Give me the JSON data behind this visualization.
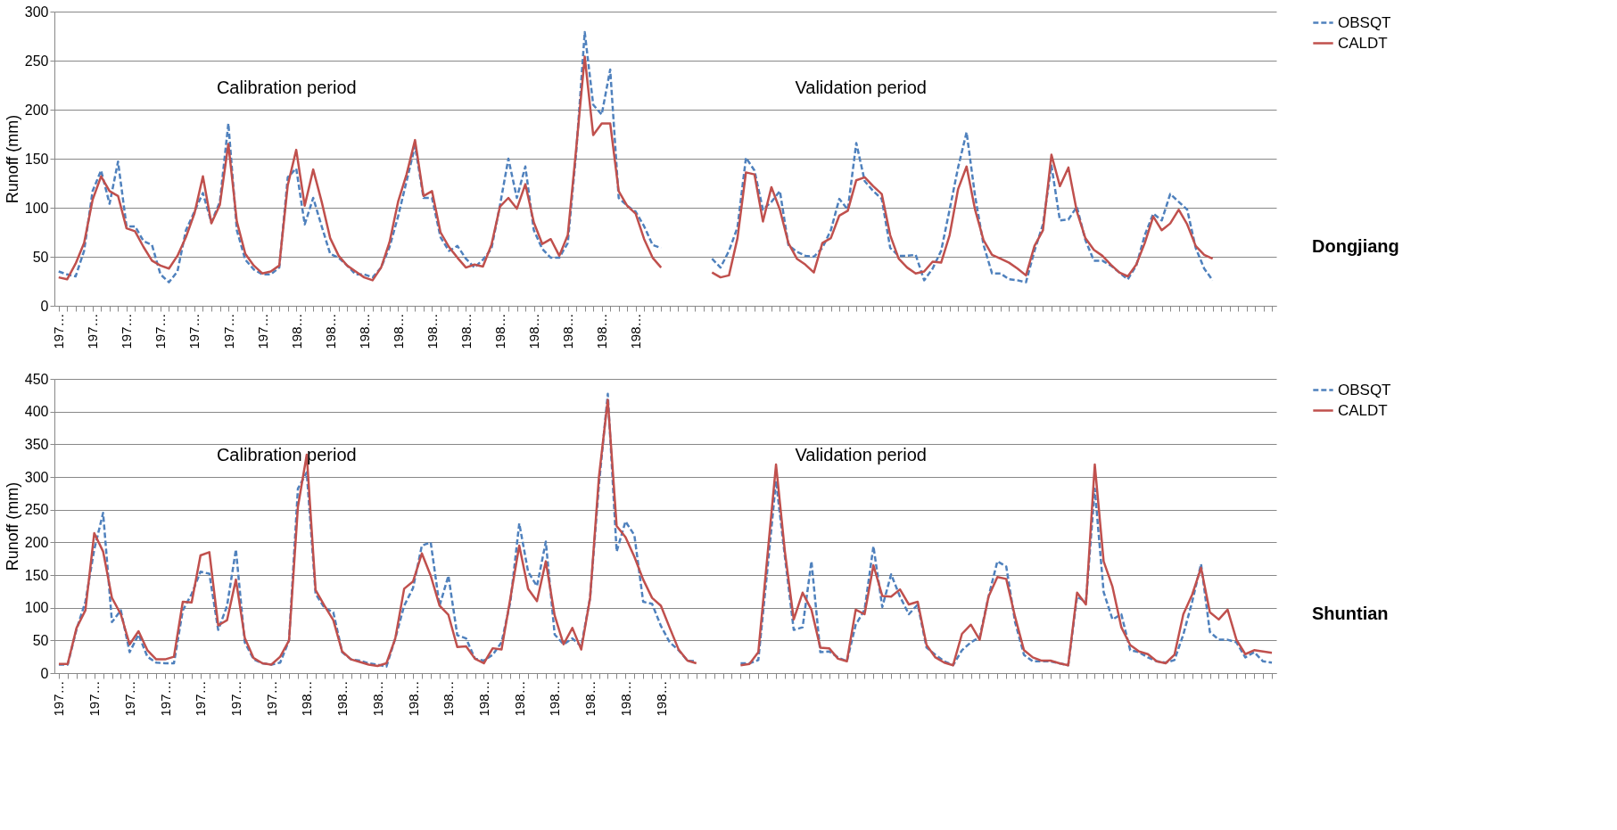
{
  "chart_data": [
    {
      "type": "line",
      "ylabel": "Runoff (mm)",
      "ylim": [
        0,
        300
      ],
      "yticks": [
        0,
        50,
        100,
        150,
        200,
        250,
        300
      ],
      "grid": "y",
      "legend": "right",
      "marker": "none",
      "annotations": [
        "Calibration period",
        "Validation period",
        "Dongjiang"
      ],
      "categories": [
        "197…",
        null,
        null,
        null,
        "197…",
        null,
        null,
        null,
        "197…",
        null,
        null,
        null,
        "197…",
        null,
        null,
        null,
        "197…",
        null,
        null,
        null,
        "197…",
        null,
        null,
        null,
        "197…",
        null,
        null,
        null,
        "198…",
        null,
        null,
        null,
        "198…",
        null,
        null,
        null,
        "198…",
        null,
        null,
        null,
        "198…",
        null,
        null,
        null,
        "198…",
        null,
        null,
        null,
        "198…",
        null,
        null,
        null,
        "198…",
        null,
        null,
        null,
        "198…",
        null,
        null,
        null,
        "198…",
        null,
        null,
        null,
        "198…",
        null,
        null,
        null,
        "198…",
        null,
        null,
        null,
        null,
        null,
        null,
        null,
        null,
        null,
        null,
        null,
        null,
        null,
        null,
        null,
        null,
        null,
        null,
        null,
        null,
        null,
        null,
        null,
        null,
        null,
        null,
        null,
        null,
        null,
        null,
        null,
        null,
        null,
        null,
        null,
        null,
        null,
        null,
        null,
        null,
        null,
        null,
        null,
        null,
        null,
        null,
        null,
        null,
        null,
        null,
        null,
        null,
        null,
        null,
        null,
        null,
        null,
        null,
        null,
        null,
        null,
        null,
        null,
        null,
        null,
        null,
        null,
        null,
        null,
        null,
        null,
        null,
        null,
        null,
        null
      ],
      "series": [
        {
          "name": "OBSQT",
          "color": "#4f81bd",
          "line_style": "dashed",
          "values": [
            35,
            32,
            30,
            56,
            117,
            138,
            104,
            147,
            81,
            81,
            66,
            62,
            32,
            24,
            35,
            77,
            96,
            115,
            85,
            106,
            186,
            77,
            47,
            37,
            32,
            32,
            39,
            131,
            140,
            83,
            110,
            81,
            53,
            49,
            41,
            32,
            32,
            29,
            39,
            60,
            91,
            127,
            163,
            110,
            110,
            70,
            56,
            61,
            48,
            39,
            47,
            58,
            102,
            150,
            110,
            142,
            77,
            58,
            49,
            49,
            64,
            157,
            279,
            205,
            195,
            241,
            110,
            102,
            96,
            81,
            62,
            59,
            null,
            null,
            null,
            null,
            null,
            48,
            39,
            56,
            80,
            151,
            138,
            98,
            106,
            117,
            62,
            55,
            51,
            50,
            59,
            77,
            109,
            98,
            166,
            127,
            117,
            109,
            59,
            51,
            51,
            52,
            26,
            38,
            56,
            98,
            141,
            177,
            112,
            62,
            33,
            33,
            27,
            26,
            24,
            56,
            83,
            143,
            87,
            88,
            101,
            67,
            46,
            46,
            41,
            34,
            27,
            41,
            72,
            94,
            87,
            114,
            106,
            98,
            59,
            38,
            26,
            null,
            null,
            null,
            null,
            null,
            null,
            null
          ]
        },
        {
          "name": "CALDT",
          "color": "#c0504d",
          "line_style": "solid",
          "values": [
            29,
            27,
            43,
            64,
            108,
            132,
            117,
            112,
            79,
            76,
            60,
            46,
            41,
            38,
            51,
            70,
            94,
            132,
            84,
            103,
            165,
            86,
            53,
            41,
            33,
            35,
            41,
            123,
            159,
            102,
            139,
            106,
            69,
            51,
            41,
            35,
            29,
            26,
            39,
            65,
            106,
            134,
            169,
            112,
            117,
            75,
            60,
            49,
            39,
            42,
            40,
            62,
            101,
            110,
            99,
            124,
            85,
            63,
            68,
            51,
            72,
            161,
            254,
            174,
            186,
            186,
            117,
            102,
            94,
            68,
            49,
            39,
            null,
            null,
            null,
            null,
            null,
            34,
            29,
            31,
            69,
            136,
            134,
            86,
            121,
            98,
            64,
            48,
            42,
            34,
            64,
            69,
            92,
            97,
            128,
            131,
            122,
            114,
            72,
            48,
            39,
            33,
            35,
            45,
            44,
            72,
            119,
            142,
            98,
            67,
            52,
            48,
            44,
            38,
            31,
            61,
            77,
            154,
            122,
            141,
            96,
            69,
            57,
            51,
            42,
            34,
            30,
            42,
            64,
            91,
            77,
            84,
            98,
            83,
            61,
            52,
            48,
            null,
            null,
            null,
            null,
            null,
            null,
            null
          ]
        }
      ]
    },
    {
      "type": "line",
      "ylabel": "Runoff (mm)",
      "ylim": [
        0,
        450
      ],
      "yticks": [
        0,
        50,
        100,
        150,
        200,
        250,
        300,
        350,
        400,
        450
      ],
      "grid": "y",
      "legend": "right",
      "marker": "none",
      "annotations": [
        "Calibration period",
        "Validation period",
        "Shuntian"
      ],
      "categories": [
        "197…",
        null,
        null,
        null,
        "197…",
        null,
        null,
        null,
        "197…",
        null,
        null,
        null,
        "197…",
        null,
        null,
        null,
        "197…",
        null,
        null,
        null,
        "197…",
        null,
        null,
        null,
        "197…",
        null,
        null,
        null,
        "198…",
        null,
        null,
        null,
        "198…",
        null,
        null,
        null,
        "198…",
        null,
        null,
        null,
        "198…",
        null,
        null,
        null,
        "198…",
        null,
        null,
        null,
        "198…",
        null,
        null,
        null,
        "198…",
        null,
        null,
        null,
        "198…",
        null,
        null,
        null,
        "198…",
        null,
        null,
        null,
        "198…",
        null,
        null,
        null,
        "198…",
        null,
        null,
        null,
        null,
        null,
        null,
        null,
        null,
        null,
        null,
        null,
        null,
        null,
        null,
        null,
        null,
        null,
        null,
        null,
        null,
        null,
        null,
        null,
        null,
        null,
        null,
        null,
        null,
        null,
        null,
        null,
        null,
        null,
        null,
        null,
        null,
        null,
        null,
        null,
        null,
        null,
        null,
        null,
        null,
        null,
        null,
        null,
        null,
        null,
        null,
        null,
        null,
        null,
        null,
        null,
        null,
        null,
        null,
        null,
        null,
        null,
        null,
        null,
        null,
        null,
        null,
        null,
        null,
        null
      ],
      "series": [
        {
          "name": "OBSQT",
          "color": "#4f81bd",
          "line_style": "dashed",
          "values": [
            13,
            13,
            67,
            109,
            189,
            245,
            78,
            96,
            32,
            59,
            25,
            16,
            15,
            15,
            96,
            121,
            155,
            152,
            66,
            103,
            189,
            47,
            21,
            15,
            13,
            16,
            50,
            282,
            307,
            121,
            100,
            93,
            32,
            21,
            19,
            15,
            13,
            10,
            53,
            103,
            130,
            195,
            200,
            103,
            149,
            58,
            53,
            22,
            19,
            28,
            47,
            109,
            229,
            155,
            133,
            201,
            59,
            44,
            53,
            41,
            115,
            288,
            427,
            186,
            232,
            211,
            109,
            106,
            72,
            47,
            35,
            19,
            18,
            null,
            null,
            null,
            null,
            15,
            15,
            20,
            155,
            294,
            178,
            66,
            70,
            171,
            32,
            33,
            24,
            18,
            74,
            97,
            194,
            101,
            151,
            117,
            90,
            105,
            39,
            28,
            18,
            12,
            35,
            47,
            55,
            117,
            171,
            163,
            78,
            28,
            18,
            18,
            18,
            15,
            12,
            117,
            109,
            282,
            124,
            82,
            90,
            35,
            32,
            24,
            18,
            16,
            20,
            59,
            109,
            167,
            63,
            51,
            51,
            47,
            24,
            32,
            18,
            16
          ]
        },
        {
          "name": "CALDT",
          "color": "#c0504d",
          "line_style": "solid",
          "values": [
            14,
            14,
            69,
            96,
            214,
            186,
            115,
            90,
            44,
            64,
            35,
            21,
            21,
            25,
            109,
            108,
            180,
            185,
            73,
            81,
            143,
            54,
            23,
            15,
            13,
            25,
            50,
            254,
            334,
            127,
            103,
            81,
            33,
            21,
            17,
            13,
            11,
            15,
            53,
            129,
            140,
            183,
            149,
            103,
            89,
            40,
            41,
            22,
            15,
            38,
            36,
            115,
            195,
            129,
            110,
            171,
            88,
            44,
            69,
            36,
            115,
            300,
            418,
            225,
            208,
            178,
            143,
            115,
            103,
            69,
            36,
            19,
            15,
            null,
            null,
            null,
            null,
            12,
            14,
            32,
            175,
            319,
            186,
            82,
            123,
            97,
            39,
            38,
            22,
            18,
            97,
            90,
            165,
            118,
            117,
            128,
            105,
            109,
            43,
            24,
            16,
            12,
            60,
            74,
            51,
            117,
            147,
            144,
            86,
            35,
            24,
            19,
            19,
            15,
            12,
            123,
            105,
            319,
            171,
            132,
            70,
            43,
            33,
            29,
            18,
            15,
            28,
            90,
            120,
            161,
            93,
            82,
            97,
            51,
            29,
            35,
            33,
            31
          ]
        }
      ]
    }
  ]
}
